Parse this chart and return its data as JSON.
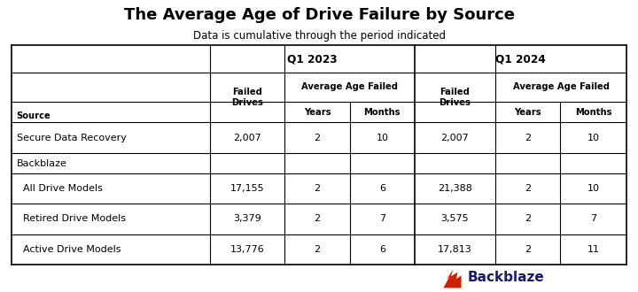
{
  "title": "The Average Age of Drive Failure by Source",
  "subtitle": "Data is cumulative through the period indicated",
  "rows": [
    {
      "source": "Secure Data Recovery",
      "indent": false,
      "q1_fd": "2,007",
      "q1_y": "2",
      "q1_m": "10",
      "q2_fd": "2,007",
      "q2_y": "2",
      "q2_m": "10"
    },
    {
      "source": "Backblaze",
      "indent": false,
      "q1_fd": "",
      "q1_y": "",
      "q1_m": "",
      "q2_fd": "",
      "q2_y": "",
      "q2_m": ""
    },
    {
      "source": "  All Drive Models",
      "indent": true,
      "q1_fd": "17,155",
      "q1_y": "2",
      "q1_m": "6",
      "q2_fd": "21,388",
      "q2_y": "2",
      "q2_m": "10"
    },
    {
      "source": "  Retired Drive Models",
      "indent": true,
      "q1_fd": "3,379",
      "q1_y": "2",
      "q1_m": "7",
      "q2_fd": "3,575",
      "q2_y": "2",
      "q2_m": "7"
    },
    {
      "source": "  Active Drive Models",
      "indent": true,
      "q1_fd": "13,776",
      "q1_y": "2",
      "q1_m": "6",
      "q2_fd": "17,813",
      "q2_y": "2",
      "q2_m": "11"
    }
  ],
  "backblaze_logo_text": "Backblaze",
  "backblaze_color": "#1a1a6e",
  "flame_color": "#cc2200",
  "background_color": "#ffffff",
  "title_fontsize": 13,
  "subtitle_fontsize": 8.5,
  "header_fontsize": 7.2,
  "data_fontsize": 8.0,
  "logo_fontsize": 11
}
